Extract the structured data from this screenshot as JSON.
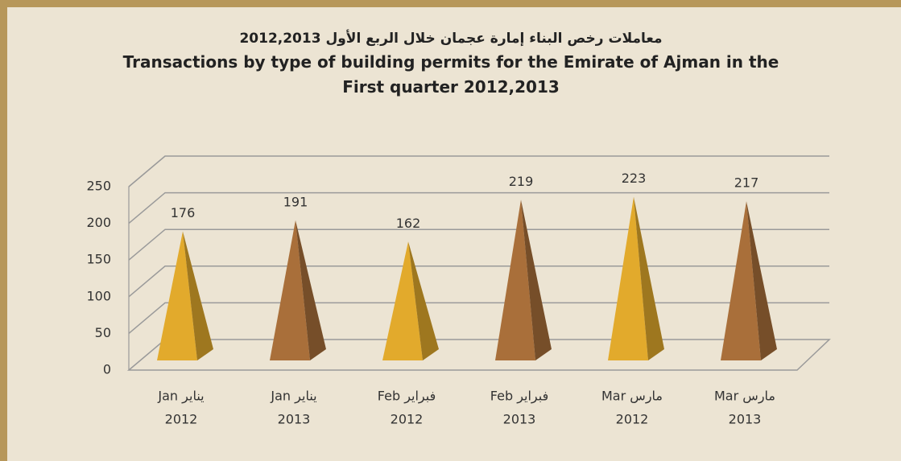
{
  "chart_data": {
    "type": "pyramid",
    "title_ar": "معاملات رخص البناء إمارة عجمان خلال الربع الأول 2012,2013",
    "title": "Transactions by type of building permits for the Emirate of Ajman in the First quarter 2012,2013",
    "categories": [
      [
        "Jan يناير",
        "2012"
      ],
      [
        "Jan يناير",
        "2013"
      ],
      [
        "Feb فبراير",
        "2012"
      ],
      [
        "Feb فبراير",
        "2013"
      ],
      [
        "Mar مارس",
        "2012"
      ],
      [
        "Mar مارس",
        "2013"
      ]
    ],
    "values": [
      176,
      191,
      162,
      219,
      223,
      217
    ],
    "colors": [
      "#e2aa2c",
      "#a96f3a",
      "#e2aa2c",
      "#a96f3a",
      "#e2aa2c",
      "#a96f3a"
    ],
    "ylim": [
      0,
      250
    ],
    "yticks": [
      0,
      50,
      100,
      150,
      200,
      250
    ],
    "grid": true
  }
}
